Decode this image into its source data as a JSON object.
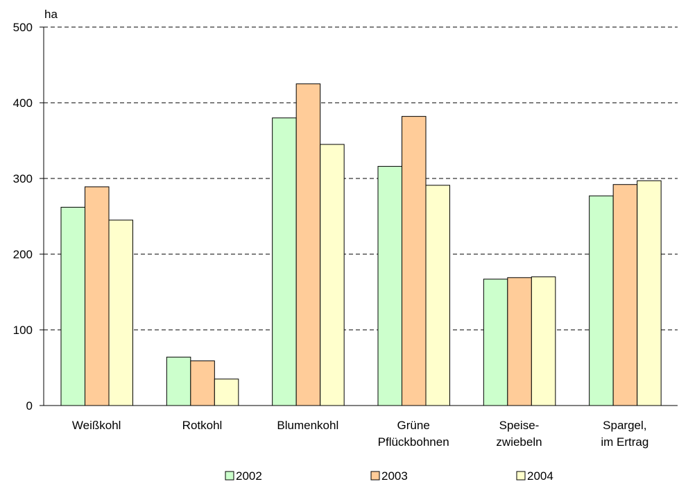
{
  "chart_data": {
    "type": "bar",
    "ylabel": "ha",
    "ylim": [
      0,
      500
    ],
    "yticks": [
      0,
      100,
      200,
      300,
      400,
      500
    ],
    "grid": true,
    "legend_position": "bottom",
    "categories": [
      [
        "Weißkohl"
      ],
      [
        "Rotkohl"
      ],
      [
        "Blumenkohl"
      ],
      [
        "Grüne",
        "Pflückbohnen"
      ],
      [
        "Speise-",
        "zwiebeln"
      ],
      [
        "Spargel,",
        "im Ertrag"
      ]
    ],
    "series": [
      {
        "name": "2002",
        "color": "#ccffcc",
        "values": [
          262,
          64,
          380,
          316,
          167,
          277
        ]
      },
      {
        "name": "2003",
        "color": "#ffcc99",
        "values": [
          289,
          59,
          425,
          382,
          169,
          292
        ]
      },
      {
        "name": "2004",
        "color": "#ffffcc",
        "values": [
          245,
          35,
          345,
          291,
          170,
          297
        ]
      }
    ]
  }
}
